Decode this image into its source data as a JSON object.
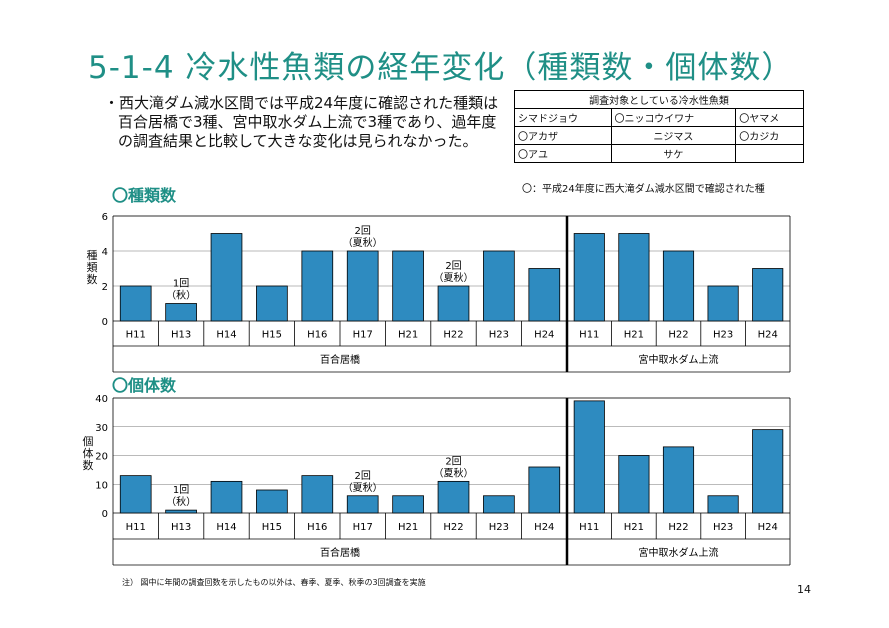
{
  "title": "5-1-4  冷水性魚類の経年変化（種類数・個体数）",
  "bullet": "・西大滝ダム減水区間では平成24年度に確認された種類は百合居橋で3種、宮中取水ダム上流で3種であり、過年度の調査結果と比較して大きな変化は見られなかった。",
  "fish_table": {
    "header": "調査対象としている冷水性魚類",
    "rows": [
      [
        "シマドジョウ",
        "〇ニッコウイワナ",
        "〇ヤマメ"
      ],
      [
        "〇アカザ",
        "ニジマス",
        "〇カジカ"
      ],
      [
        "〇アユ",
        "サケ",
        ""
      ]
    ],
    "note": "〇：平成24年度に西大滝ダム減水区間で確認された種"
  },
  "footnote": "注） 図中に年間の調査回数を示したもの以外は、春季、夏季、秋季の3回調査を実施",
  "page_number": "14",
  "chart_data": [
    {
      "type": "bar",
      "title": "〇種類数",
      "ylabel": "種類数",
      "ylim": [
        0,
        6
      ],
      "yticks": [
        0,
        2,
        4,
        6
      ],
      "bar_color": "#2e8bc0",
      "groups": [
        {
          "name": "百合居橋",
          "categories": [
            "H11",
            "H13",
            "H14",
            "H15",
            "H16",
            "H17",
            "H21",
            "H22",
            "H23",
            "H24"
          ],
          "values": [
            2,
            1,
            5,
            2,
            4,
            4,
            4,
            2,
            4,
            3
          ]
        },
        {
          "name": "宮中取水ダム上流",
          "categories": [
            "H11",
            "H21",
            "H22",
            "H23",
            "H24"
          ],
          "values": [
            5,
            5,
            4,
            2,
            3
          ]
        }
      ],
      "annotations": [
        {
          "group": 0,
          "index": 1,
          "lines": [
            "1回",
            "（秋）"
          ]
        },
        {
          "group": 0,
          "index": 5,
          "lines": [
            "2回",
            "（夏秋）"
          ]
        },
        {
          "group": 0,
          "index": 7,
          "lines": [
            "2回",
            "（夏秋）"
          ]
        }
      ]
    },
    {
      "type": "bar",
      "title": "〇個体数",
      "ylabel": "個体数",
      "ylim": [
        0,
        40
      ],
      "yticks": [
        0,
        10,
        20,
        30,
        40
      ],
      "bar_color": "#2e8bc0",
      "groups": [
        {
          "name": "百合居橋",
          "categories": [
            "H11",
            "H13",
            "H14",
            "H15",
            "H16",
            "H17",
            "H21",
            "H22",
            "H23",
            "H24"
          ],
          "values": [
            13,
            1,
            11,
            8,
            13,
            6,
            6,
            11,
            6,
            16
          ]
        },
        {
          "name": "宮中取水ダム上流",
          "categories": [
            "H11",
            "H21",
            "H22",
            "H23",
            "H24"
          ],
          "values": [
            39,
            20,
            23,
            6,
            29
          ]
        }
      ],
      "annotations": [
        {
          "group": 0,
          "index": 1,
          "lines": [
            "1回",
            "（秋）"
          ]
        },
        {
          "group": 0,
          "index": 5,
          "lines": [
            "2回",
            "（夏秋）"
          ]
        },
        {
          "group": 0,
          "index": 7,
          "lines": [
            "2回",
            "（夏秋）"
          ]
        }
      ]
    }
  ]
}
